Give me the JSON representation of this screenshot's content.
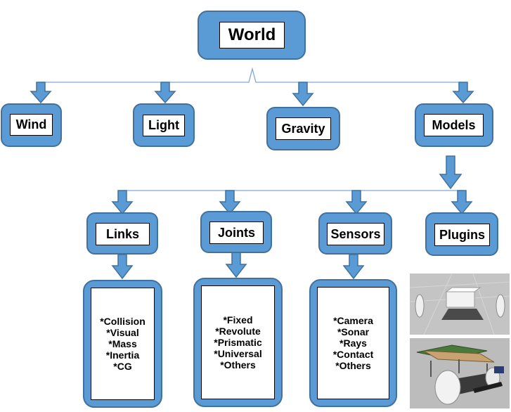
{
  "root": {
    "label": "World"
  },
  "level1": [
    {
      "id": "wind",
      "label": "Wind"
    },
    {
      "id": "light",
      "label": "Light"
    },
    {
      "id": "gravity",
      "label": "Gravity"
    },
    {
      "id": "models",
      "label": "Models"
    }
  ],
  "level2": [
    {
      "id": "links",
      "label": "Links"
    },
    {
      "id": "joints",
      "label": "Joints"
    },
    {
      "id": "sensors",
      "label": "Sensors"
    },
    {
      "id": "plugins",
      "label": "Plugins"
    }
  ],
  "links_items": [
    "*Collision",
    "*Visual",
    "*Mass",
    "*Inertia",
    "*CG"
  ],
  "joints_items": [
    "*Fixed",
    "*Revolute",
    "*Prismatic",
    "*Universal",
    "*Others"
  ],
  "sensors_items": [
    "*Camera",
    "*Sonar",
    "*Rays",
    "*Contact",
    "*Others"
  ],
  "colors": {
    "box_fill": "#5b9bd5",
    "box_border": "#41719c",
    "inner_fill": "#ffffff",
    "text": "#000000"
  }
}
